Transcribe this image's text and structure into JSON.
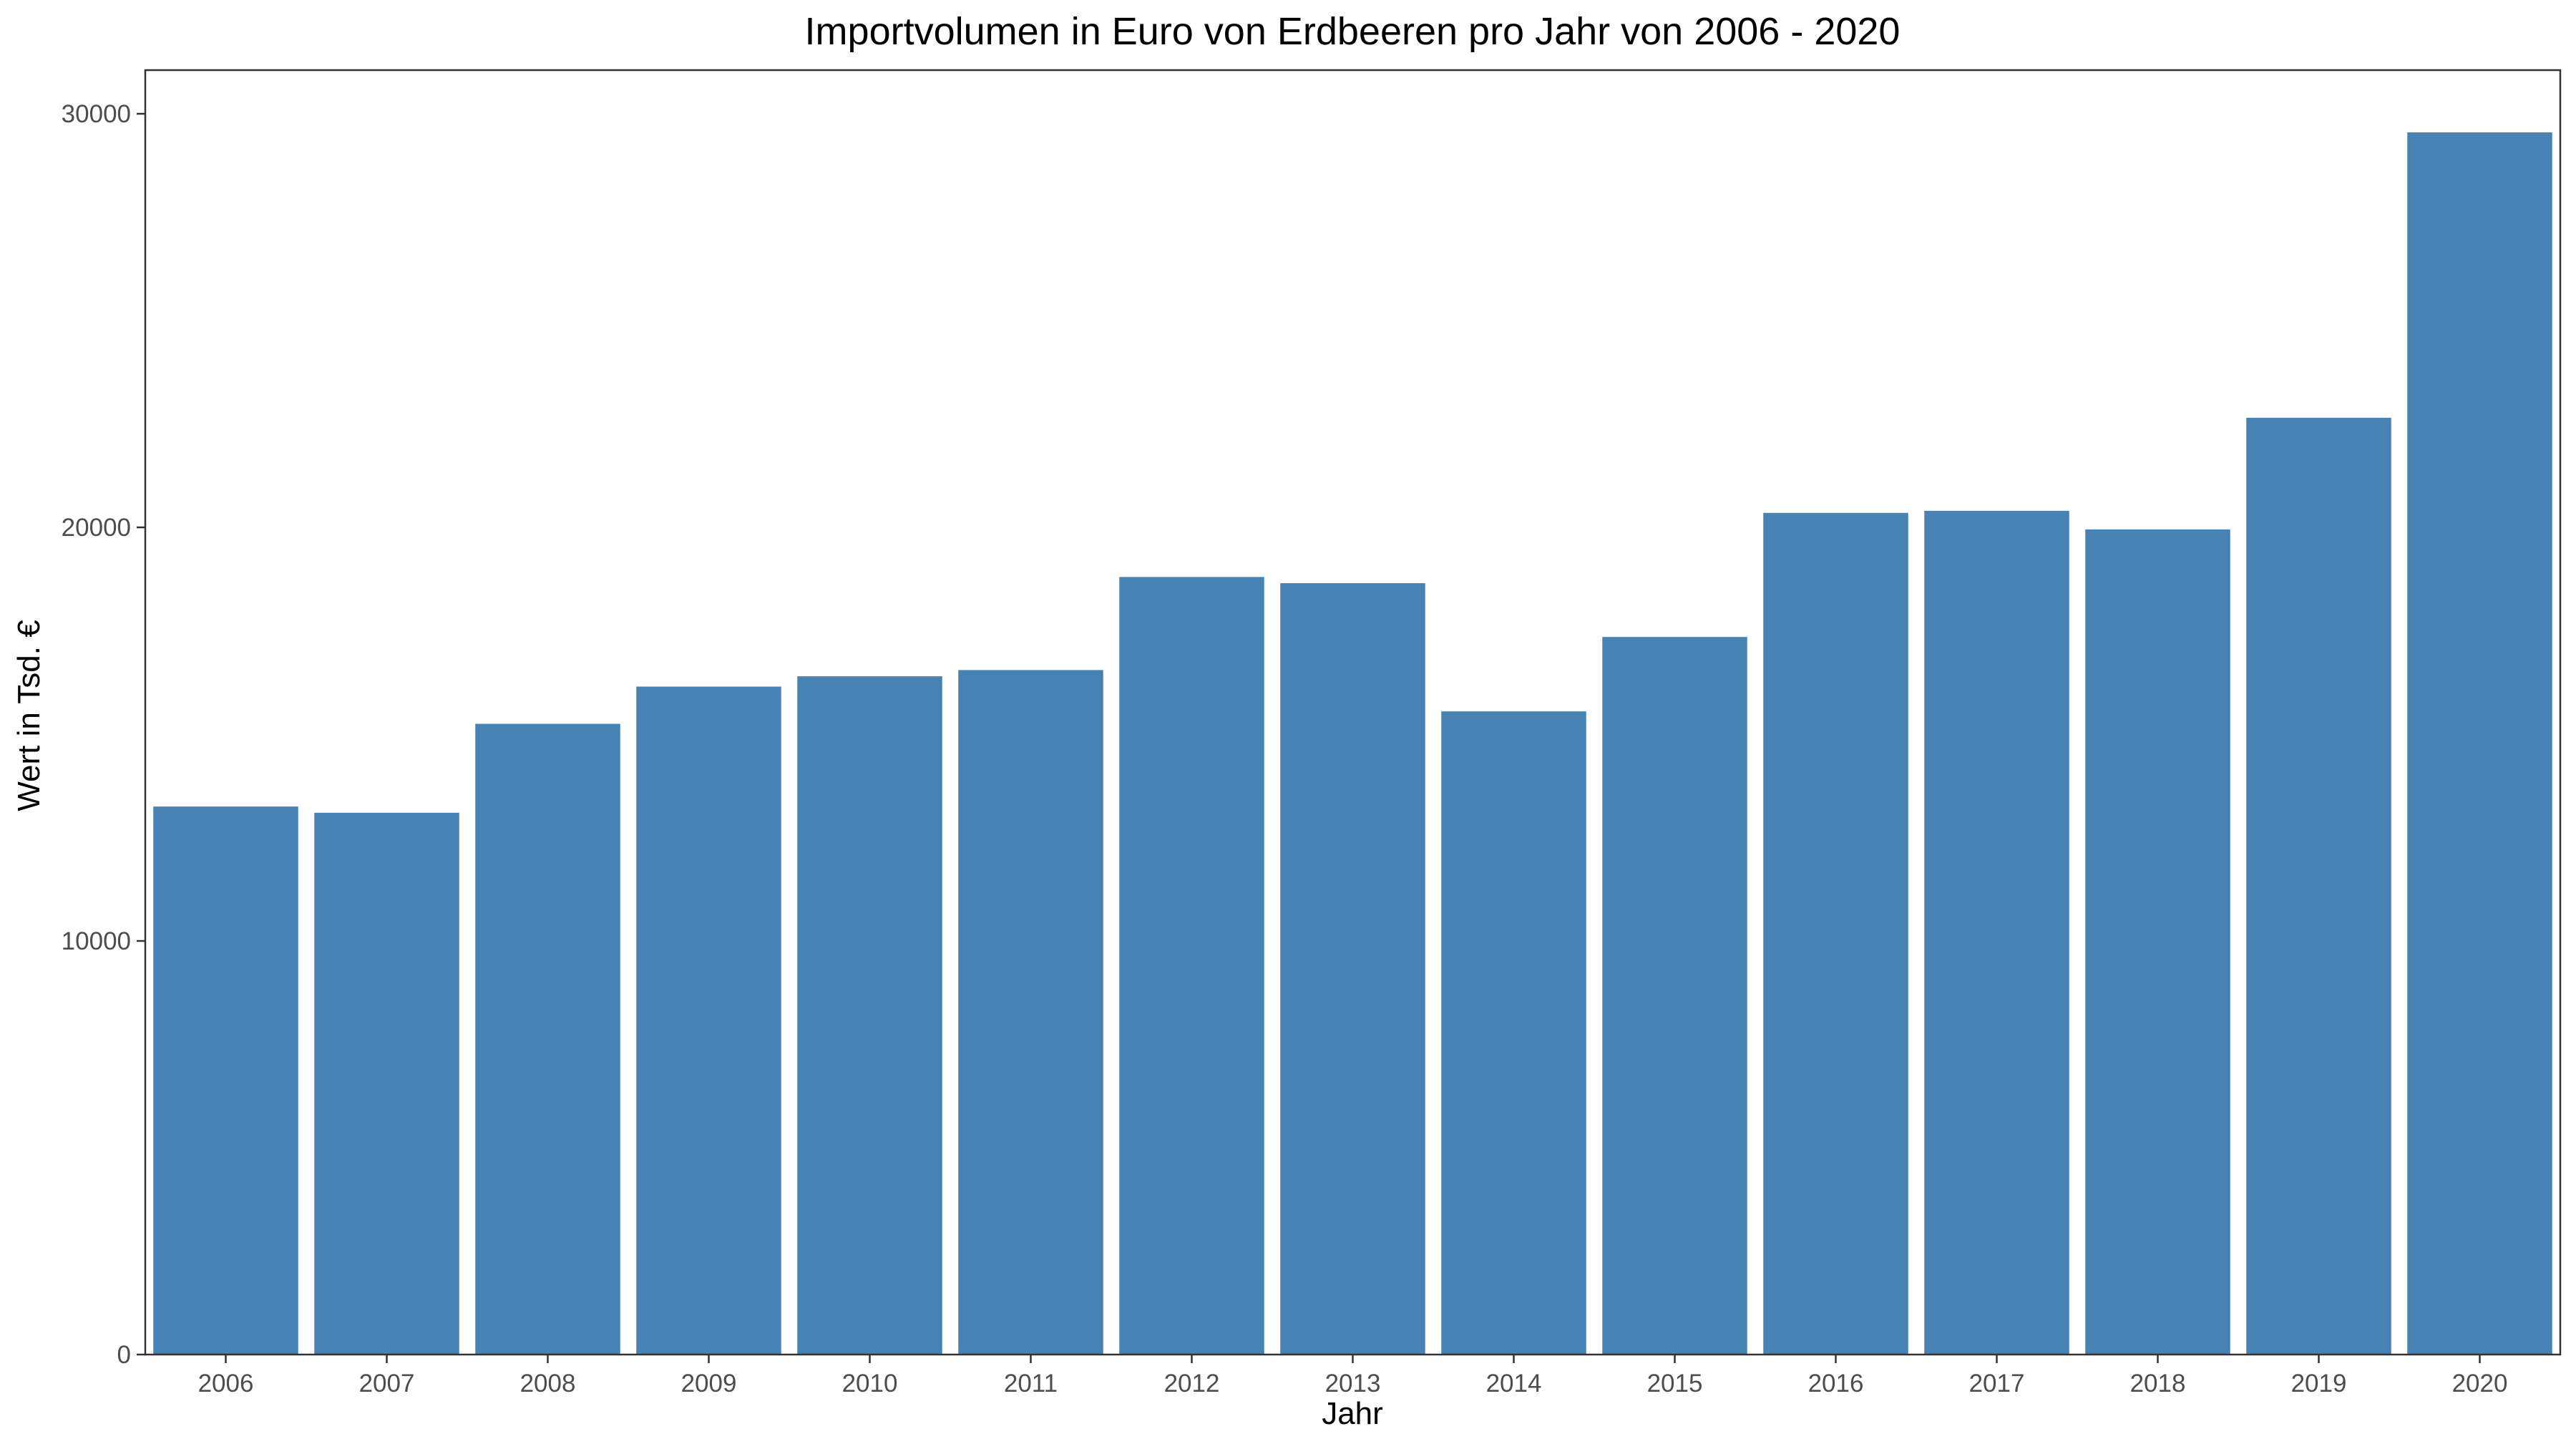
{
  "chart_data": {
    "type": "bar",
    "title": "Importvolumen in Euro von Erdbeeren pro Jahr von 2006 - 2020",
    "xlabel": "Jahr",
    "ylabel": "Wert in Tsd. €",
    "categories": [
      "2006",
      "2007",
      "2008",
      "2009",
      "2010",
      "2011",
      "2012",
      "2013",
      "2014",
      "2015",
      "2016",
      "2017",
      "2018",
      "2019",
      "2020"
    ],
    "values": [
      13250,
      13100,
      15250,
      16150,
      16400,
      16550,
      18800,
      18650,
      15550,
      17350,
      20350,
      20400,
      19950,
      22650,
      29550
    ],
    "yticks": [
      0,
      10000,
      20000,
      30000
    ],
    "ytick_labels": [
      "0",
      "10000",
      "20000",
      "30000"
    ],
    "ylim": [
      0,
      31000
    ],
    "grid": false,
    "legend": "none",
    "bar_color": "#4682B4"
  }
}
